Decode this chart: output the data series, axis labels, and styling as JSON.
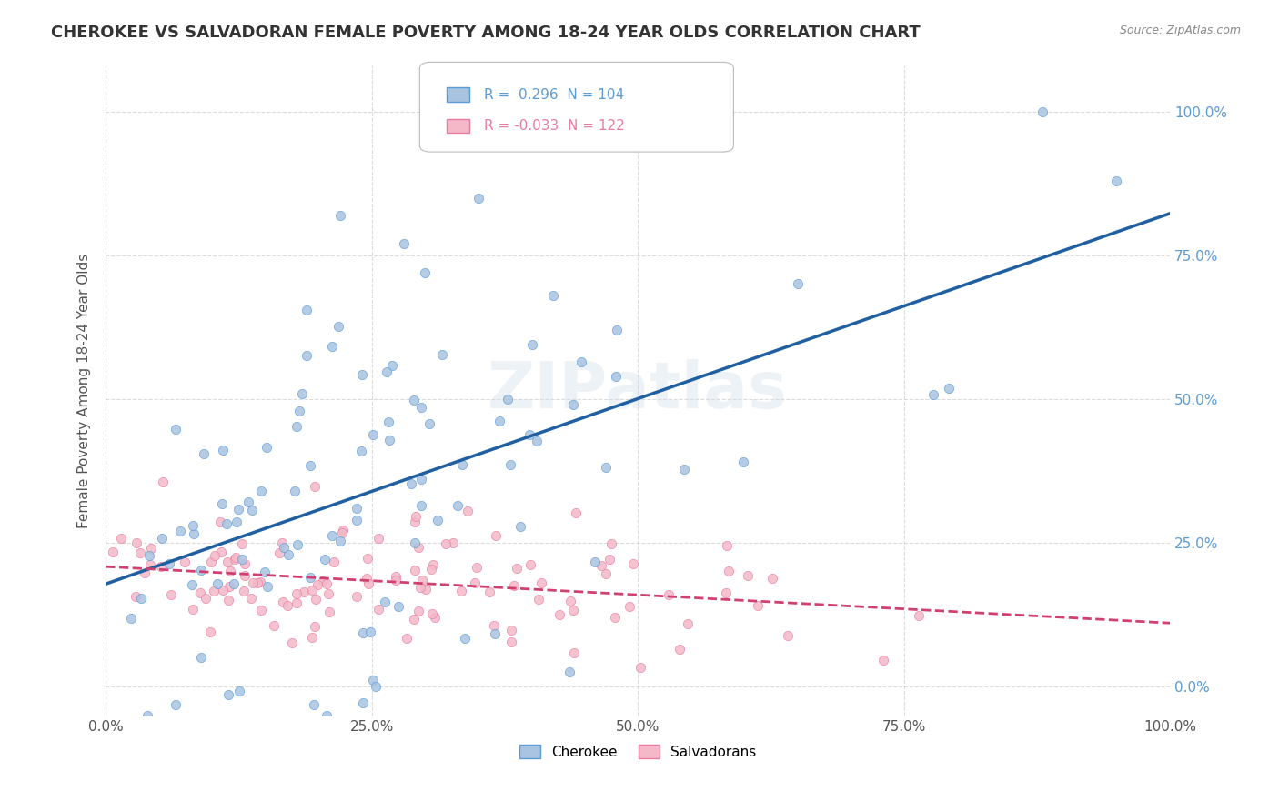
{
  "title": "CHEROKEE VS SALVADORAN FEMALE POVERTY AMONG 18-24 YEAR OLDS CORRELATION CHART",
  "source": "Source: ZipAtlas.com",
  "ylabel": "Female Poverty Among 18-24 Year Olds",
  "yticks": [
    "0.0%",
    "25.0%",
    "50.0%",
    "75.0%",
    "100.0%"
  ],
  "xticks": [
    "0.0%",
    "25.0%",
    "50.0%",
    "75.0%",
    "100.0%"
  ],
  "cherokee_color": "#a8c4e0",
  "cherokee_edge_color": "#5b9bd5",
  "salvadoran_color": "#f4b8c8",
  "salvadoran_edge_color": "#e87ca0",
  "cherokee_line_color": "#2060a0",
  "salvadoran_line_color": "#d04070",
  "cherokee_R": 0.296,
  "cherokee_N": 104,
  "salvadoran_R": -0.033,
  "salvadoran_N": 122,
  "watermark": "ZIPatlas",
  "legend_cherokee": "Cherokee",
  "legend_salvadorans": "Salvadorans",
  "background_color": "#ffffff",
  "grid_color": "#cccccc",
  "title_color": "#333333",
  "axis_label_color": "#555555",
  "right_yaxis_color": "#5b9bd5",
  "marker_size": 55,
  "seed": 42
}
